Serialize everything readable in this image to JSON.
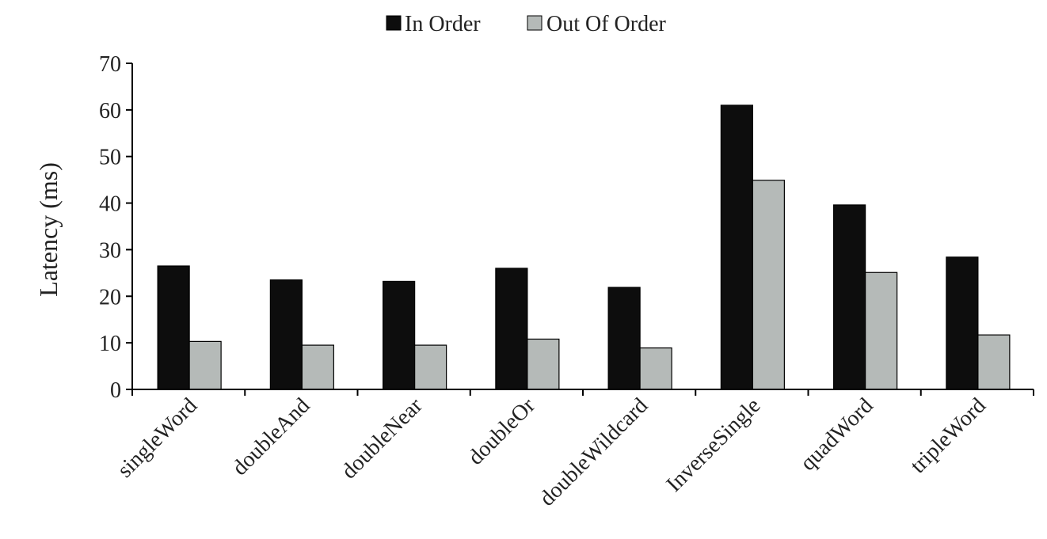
{
  "chart_data": {
    "type": "bar",
    "title": "",
    "xlabel": "",
    "ylabel": "Latency (ms)",
    "ylim": [
      0,
      70
    ],
    "yticks": [
      0,
      10,
      20,
      30,
      40,
      50,
      60,
      70
    ],
    "grid": false,
    "legend_position": "top-center",
    "categories": [
      "singleWord",
      "doubleAnd",
      "doubleNear",
      "doubleOr",
      "doubleWildcard",
      "InverseSingle",
      "quadWord",
      "tripleWord"
    ],
    "series": [
      {
        "name": "In Order",
        "color": "#0d0d0d",
        "values": [
          26.5,
          23.5,
          23.2,
          26,
          21.9,
          61,
          39.6,
          28.4
        ]
      },
      {
        "name": "Out Of Order",
        "color": "#b5bab8",
        "values": [
          10.3,
          9.5,
          9.5,
          10.8,
          8.9,
          44.9,
          25.1,
          11.7
        ]
      }
    ]
  }
}
